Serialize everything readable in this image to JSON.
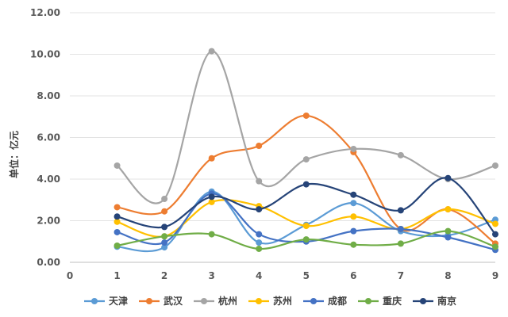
{
  "chart_data": {
    "type": "line",
    "ylabel": "单位：亿元",
    "x": [
      1,
      2,
      3,
      4,
      5,
      6,
      7,
      8,
      9
    ],
    "x_ticks": [
      "0",
      "1",
      "2",
      "3",
      "4",
      "5",
      "6",
      "7",
      "8",
      "9"
    ],
    "xlim": [
      0,
      9
    ],
    "ylim": [
      0,
      12
    ],
    "y_ticks": [
      "0.00",
      "2.00",
      "4.00",
      "6.00",
      "8.00",
      "10.00",
      "12.00"
    ],
    "grid": "horizontal",
    "legend_position": "bottom",
    "series": [
      {
        "name": "天津",
        "color": "#5B9BD5",
        "values": [
          0.75,
          0.72,
          3.4,
          0.95,
          1.8,
          2.85,
          1.5,
          1.3,
          2.05
        ]
      },
      {
        "name": "武汉",
        "color": "#ED7D31",
        "values": [
          2.65,
          2.45,
          5.0,
          5.6,
          7.05,
          5.3,
          1.6,
          2.55,
          0.9
        ]
      },
      {
        "name": "杭州",
        "color": "#A5A5A5",
        "values": [
          4.65,
          3.05,
          10.15,
          3.9,
          4.95,
          5.45,
          5.15,
          4.0,
          4.65
        ]
      },
      {
        "name": "苏州",
        "color": "#FFC000",
        "values": [
          1.95,
          1.25,
          2.9,
          2.7,
          1.75,
          2.2,
          1.6,
          2.55,
          1.85
        ]
      },
      {
        "name": "成都",
        "color": "#4472C4",
        "values": [
          1.45,
          0.95,
          3.3,
          1.35,
          1.0,
          1.5,
          1.6,
          1.2,
          0.6
        ]
      },
      {
        "name": "重庆",
        "color": "#70AD47",
        "values": [
          0.8,
          1.25,
          1.35,
          0.65,
          1.1,
          0.85,
          0.9,
          1.5,
          0.75
        ]
      },
      {
        "name": "南京",
        "color": "#264478",
        "values": [
          2.2,
          1.7,
          3.15,
          2.55,
          3.75,
          3.25,
          2.5,
          4.05,
          1.35
        ]
      }
    ]
  }
}
